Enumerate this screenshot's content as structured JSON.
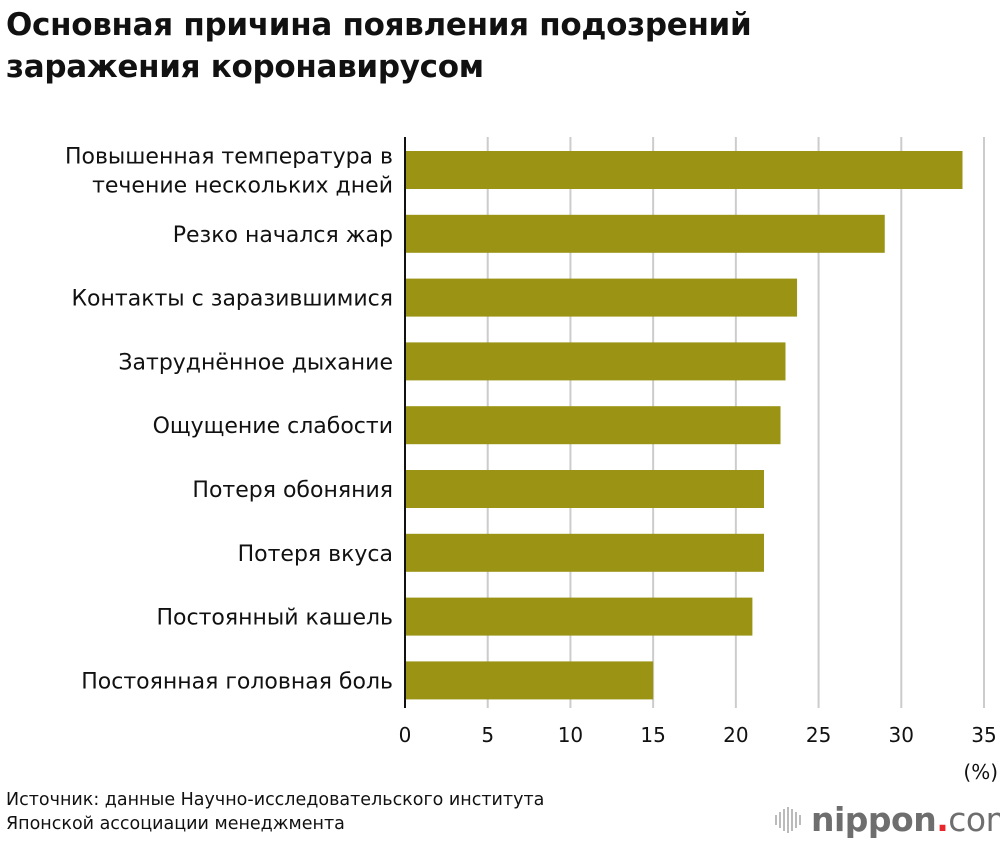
{
  "title": [
    "Основная причина появления подозрений",
    "заражения коронавирусом"
  ],
  "source": [
    "Источник: данные Научно-исследовательского института",
    "Японской ассоциации менеджмента"
  ],
  "logo": {
    "name": "nippon",
    "dot": ".",
    "suffix": "com"
  },
  "colors": {
    "bar": "#9a9314",
    "grid": "#cccccc",
    "axis": "#111111",
    "logo_dot": "#e8262b"
  },
  "chart_data": {
    "type": "bar",
    "orientation": "horizontal",
    "categories": [
      [
        "Повышенная температура в",
        "течение нескольких дней"
      ],
      [
        "Резко начался жар"
      ],
      [
        "Контакты с заразившимися"
      ],
      [
        "Затруднённое дыхание"
      ],
      [
        "Ощущение слабости"
      ],
      [
        "Потеря обоняния"
      ],
      [
        "Потеря вкуса"
      ],
      [
        "Постоянный кашель"
      ],
      [
        "Постоянная головная боль"
      ]
    ],
    "values": [
      33.7,
      29.0,
      23.7,
      23.0,
      22.7,
      21.7,
      21.7,
      21.0,
      15.0
    ],
    "xlim": [
      0,
      35
    ],
    "xticks": [
      "0",
      "5",
      "10",
      "15",
      "20",
      "25",
      "30",
      "35"
    ],
    "xunit": "(%)",
    "grid": true
  }
}
